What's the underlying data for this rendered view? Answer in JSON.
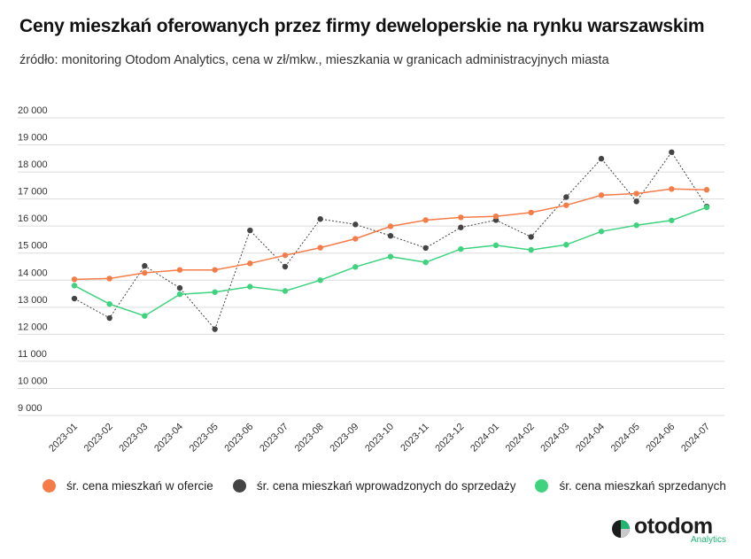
{
  "header": {
    "title": "Ceny mieszkań oferowanych przez firmy deweloperskie na rynku warszawskim",
    "subtitle": "źródło: monitoring Otodom Analytics, cena w zł/mkw., mieszkania w granicach administracyjnych miasta"
  },
  "legend": {
    "items": [
      {
        "label": "śr. cena mieszkań w ofercie",
        "color": "#f47c48"
      },
      {
        "label": "śr. cena mieszkań wprowadzonych do sprzedaży",
        "color": "#444444"
      },
      {
        "label": "śr. cena mieszkań sprzedanych",
        "color": "#3fd27f"
      }
    ]
  },
  "logo": {
    "brand": "otodom",
    "sub": "Analytics",
    "icon": "otodom-logo-icon"
  },
  "chart_data": {
    "type": "line",
    "title": "Ceny mieszkań oferowanych przez firmy deweloperskie na rynku warszawskim",
    "subtitle": "źródło: monitoring Otodom Analytics, cena w zł/mkw., mieszkania w granicach administracyjnych miasta",
    "xlabel": "",
    "ylabel": "",
    "categories": [
      "2023-01",
      "2023-02",
      "2023-03",
      "2023-04",
      "2023-05",
      "2023-06",
      "2023-07",
      "2023-08",
      "2023-09",
      "2023-10",
      "2023-11",
      "2023-12",
      "2024-01",
      "2024-02",
      "2024-03",
      "2024-04",
      "2024-05",
      "2024-06",
      "2024-07"
    ],
    "ylim": [
      9000,
      20000
    ],
    "yticks": [
      9000,
      10000,
      11000,
      12000,
      13000,
      14000,
      15000,
      16000,
      17000,
      18000,
      19000,
      20000
    ],
    "ytick_labels": [
      "9 000",
      "10 000",
      "11 000",
      "12 000",
      "13 000",
      "14 000",
      "15 000",
      "16 000",
      "17 000",
      "18 000",
      "19 000",
      "20 000"
    ],
    "grid": true,
    "legend_position": "bottom",
    "series": [
      {
        "name": "śr. cena mieszkań w ofercie",
        "color": "#f47c48",
        "line_style": "solid",
        "values": [
          14030,
          14060,
          14270,
          14380,
          14380,
          14620,
          14920,
          15200,
          15530,
          15990,
          16220,
          16320,
          16360,
          16500,
          16770,
          17140,
          17200,
          17370,
          17340
        ]
      },
      {
        "name": "śr. cena mieszkań wprowadzonych do sprzedaży",
        "color": "#444444",
        "line_style": "dotted",
        "values": [
          13320,
          12600,
          14530,
          13710,
          12190,
          15840,
          14500,
          16260,
          16060,
          15640,
          15190,
          15950,
          16220,
          15600,
          17070,
          18490,
          16910,
          18730,
          16720
        ]
      },
      {
        "name": "śr. cena mieszkań sprzedanych",
        "color": "#3fd27f",
        "line_style": "solid",
        "values": [
          13800,
          13120,
          12680,
          13480,
          13560,
          13760,
          13600,
          14000,
          14490,
          14870,
          14660,
          15150,
          15290,
          15120,
          15310,
          15800,
          16030,
          16210,
          16690
        ]
      }
    ]
  }
}
